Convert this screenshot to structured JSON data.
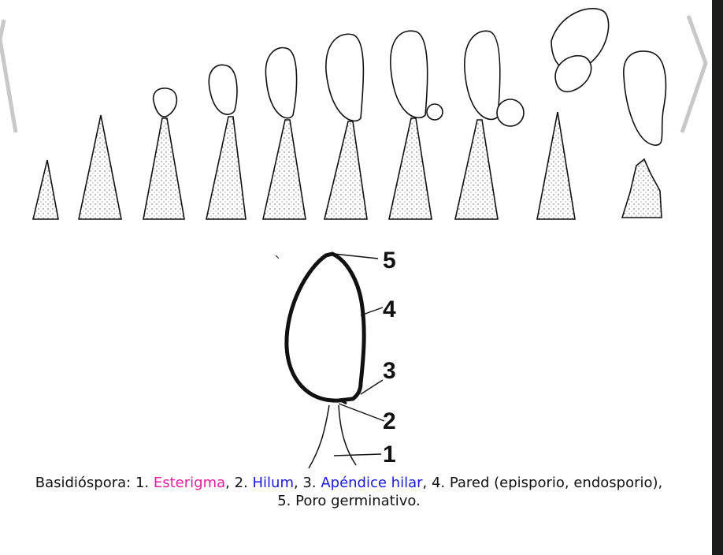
{
  "figure": {
    "development_stages": 10,
    "labels": [
      {
        "n": "5"
      },
      {
        "n": "4"
      },
      {
        "n": "3"
      },
      {
        "n": "2"
      },
      {
        "n": "1"
      }
    ]
  },
  "caption": {
    "prefix": "Basidióspora: 1. ",
    "link1": "Esterigma",
    "sep1": ", 2. ",
    "link2": "Hilum",
    "sep2": ", 3. ",
    "link3": "Apéndice hilar",
    "rest_line1": ", 4. Pared (episporio, endosporio),",
    "line2": "5. Poro germinativo."
  },
  "colors": {
    "esterigma_link": "#e0209e",
    "blue_link": "#1a1ad6",
    "side_strip": "#1c1c1c"
  },
  "icons": {
    "prev": "chevron-left-icon",
    "next": "chevron-right-icon"
  }
}
